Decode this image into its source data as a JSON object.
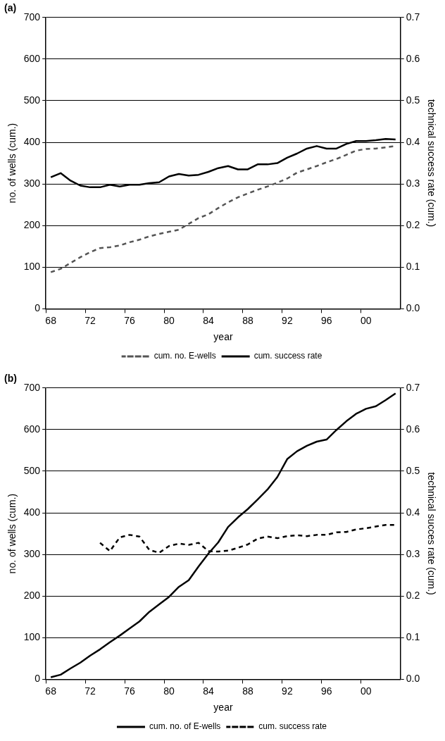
{
  "chart_data": [
    {
      "type": "line",
      "title": "(a)",
      "xlabel": "year",
      "ylabel": "no. of wells (cum.)",
      "y2label": "technical success rate (cum.)",
      "categories": [
        "68",
        null,
        null,
        null,
        "72",
        null,
        null,
        null,
        "76",
        null,
        null,
        null,
        "80",
        null,
        null,
        null,
        "84",
        null,
        null,
        null,
        "88",
        null,
        null,
        null,
        "92",
        null,
        null,
        null,
        "96",
        null,
        null,
        null,
        "00",
        null,
        null,
        null
      ],
      "ylim": [
        0,
        700
      ],
      "yticks": [
        0,
        100,
        200,
        300,
        400,
        500,
        600,
        700
      ],
      "y2lim": [
        0,
        0.7
      ],
      "y2ticks": [
        {
          "value": 0,
          "label": "0.0"
        },
        0.1,
        0.2,
        0.3,
        0.4,
        0.5,
        0.6,
        0.7
      ],
      "grid": "y",
      "legend": "bottom",
      "marker": "none",
      "series": [
        {
          "name": "cum. no. E-wells",
          "color": "#555555",
          "line_style": "dashed",
          "values": [
            88,
            96,
            110,
            124,
            136,
            146,
            148,
            152,
            160,
            166,
            174,
            180,
            185,
            190,
            204,
            218,
            227,
            242,
            256,
            268,
            277,
            286,
            294,
            303,
            313,
            327,
            335,
            343,
            352,
            360,
            370,
            380,
            384,
            385,
            388,
            391
          ]
        },
        {
          "name": "cum. success rate",
          "color": "#000000",
          "line_style": "solid",
          "axis": "y2",
          "values": [
            0.316,
            0.326,
            0.308,
            0.296,
            0.292,
            0.292,
            0.298,
            0.294,
            0.298,
            0.298,
            0.302,
            0.304,
            0.318,
            0.324,
            0.32,
            0.322,
            0.329,
            0.338,
            0.343,
            0.335,
            0.335,
            0.347,
            0.347,
            0.35,
            0.363,
            0.373,
            0.385,
            0.391,
            0.385,
            0.385,
            0.396,
            0.403,
            0.403,
            0.405,
            0.408,
            0.407
          ]
        }
      ]
    },
    {
      "type": "line",
      "title": "(b)",
      "xlabel": "year",
      "ylabel": "no. of wells (cum.)",
      "y2label": "technical succes rate (cum.)",
      "categories": [
        "68",
        null,
        null,
        null,
        "72",
        null,
        null,
        null,
        "76",
        null,
        null,
        null,
        "80",
        null,
        null,
        null,
        "84",
        null,
        null,
        null,
        "88",
        null,
        null,
        null,
        "92",
        null,
        null,
        null,
        "96",
        null,
        null,
        null,
        "00",
        null,
        null,
        null
      ],
      "ylim": [
        0,
        700
      ],
      "yticks": [
        0,
        100,
        200,
        300,
        400,
        500,
        600,
        700
      ],
      "y2lim": [
        0,
        0.7
      ],
      "y2ticks": [
        {
          "value": 0,
          "label": "0.0"
        },
        0.1,
        0.2,
        0.3,
        0.4,
        0.5,
        0.6,
        0.7
      ],
      "grid": "y",
      "legend": "bottom",
      "marker": "none",
      "series": [
        {
          "name": "cum. no. of E-wells",
          "color": "#000000",
          "line_style": "solid",
          "values": [
            5,
            11,
            26,
            40,
            57,
            72,
            89,
            105,
            122,
            139,
            162,
            180,
            198,
            222,
            238,
            271,
            302,
            329,
            366,
            389,
            409,
            432,
            456,
            486,
            529,
            548,
            561,
            571,
            576,
            599,
            620,
            638,
            650,
            656,
            671,
            687
          ]
        },
        {
          "name": "cum. success rate",
          "color": "#000000",
          "line_style": "dashed",
          "axis": "y2",
          "values": [
            null,
            null,
            null,
            null,
            null,
            0.328,
            0.308,
            0.341,
            0.347,
            0.343,
            0.311,
            0.304,
            0.32,
            0.326,
            0.323,
            0.328,
            0.308,
            0.307,
            0.309,
            0.316,
            0.324,
            0.338,
            0.343,
            0.339,
            0.344,
            0.346,
            0.344,
            0.347,
            0.347,
            0.353,
            0.354,
            0.36,
            0.363,
            0.367,
            0.371,
            0.371
          ]
        }
      ]
    }
  ]
}
